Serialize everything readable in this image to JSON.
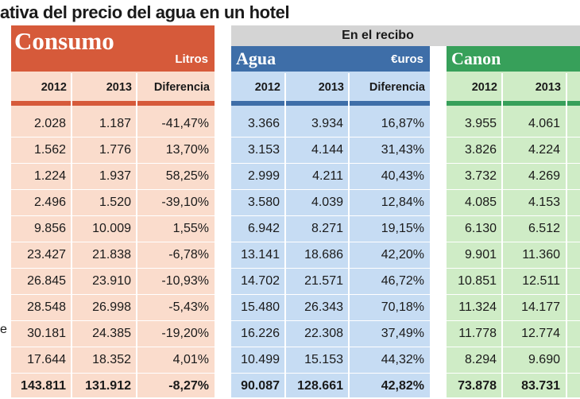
{
  "title": "ativa del precio del agua en un hotel",
  "recibo_label": "En el recibo",
  "consumo": {
    "title": "Consumo",
    "unit": "Litros"
  },
  "agua": {
    "title": "Agua",
    "unit": "€uros"
  },
  "canon": {
    "title": "Canon"
  },
  "columns": {
    "consumo": [
      "2012",
      "2013",
      "Diferencia"
    ],
    "agua": [
      "2012",
      "2013",
      "Diferencia"
    ],
    "canon": [
      "2012",
      "2013"
    ]
  },
  "left_fragments": [
    "e"
  ],
  "rows": [
    {
      "c12": "2.028",
      "c13": "1.187",
      "cd": "-41,47%",
      "a12": "3.366",
      "a13": "3.934",
      "ad": "16,87%",
      "k12": "3.955",
      "k13": "4.061"
    },
    {
      "c12": "1.562",
      "c13": "1.776",
      "cd": "13,70%",
      "a12": "3.153",
      "a13": "4.144",
      "ad": "31,43%",
      "k12": "3.826",
      "k13": "4.224"
    },
    {
      "c12": "1.224",
      "c13": "1.937",
      "cd": "58,25%",
      "a12": "2.999",
      "a13": "4.211",
      "ad": "40,43%",
      "k12": "3.732",
      "k13": "4.269"
    },
    {
      "c12": "2.496",
      "c13": "1.520",
      "cd": "-39,10%",
      "a12": "3.580",
      "a13": "4.039",
      "ad": "12,84%",
      "k12": "4.085",
      "k13": "4.153"
    },
    {
      "c12": "9.856",
      "c13": "10.009",
      "cd": "1,55%",
      "a12": "6.942",
      "a13": "8.271",
      "ad": "19,15%",
      "k12": "6.130",
      "k13": "6.512"
    },
    {
      "c12": "23.427",
      "c13": "21.838",
      "cd": "-6,78%",
      "a12": "13.141",
      "a13": "18.686",
      "ad": "42,20%",
      "k12": "9.901",
      "k13": "11.360"
    },
    {
      "c12": "26.845",
      "c13": "23.910",
      "cd": "-10,93%",
      "a12": "14.702",
      "a13": "21.571",
      "ad": "46,72%",
      "k12": "10.851",
      "k13": "12.511"
    },
    {
      "c12": "28.548",
      "c13": "26.998",
      "cd": "-5,43%",
      "a12": "15.480",
      "a13": "26.343",
      "ad": "70,18%",
      "k12": "11.324",
      "k13": "14.177"
    },
    {
      "c12": "30.181",
      "c13": "24.385",
      "cd": "-19,20%",
      "a12": "16.226",
      "a13": "22.308",
      "ad": "37,49%",
      "k12": "11.778",
      "k13": "12.774"
    },
    {
      "c12": "17.644",
      "c13": "18.352",
      "cd": "4,01%",
      "a12": "10.499",
      "a13": "15.153",
      "ad": "44,32%",
      "k12": "8.294",
      "k13": "9.690"
    }
  ],
  "totals": {
    "c12": "143.811",
    "c13": "131.912",
    "cd": "-8,27%",
    "a12": "90.087",
    "a13": "128.661",
    "ad": "42,82%",
    "k12": "73.878",
    "k13": "83.731"
  }
}
